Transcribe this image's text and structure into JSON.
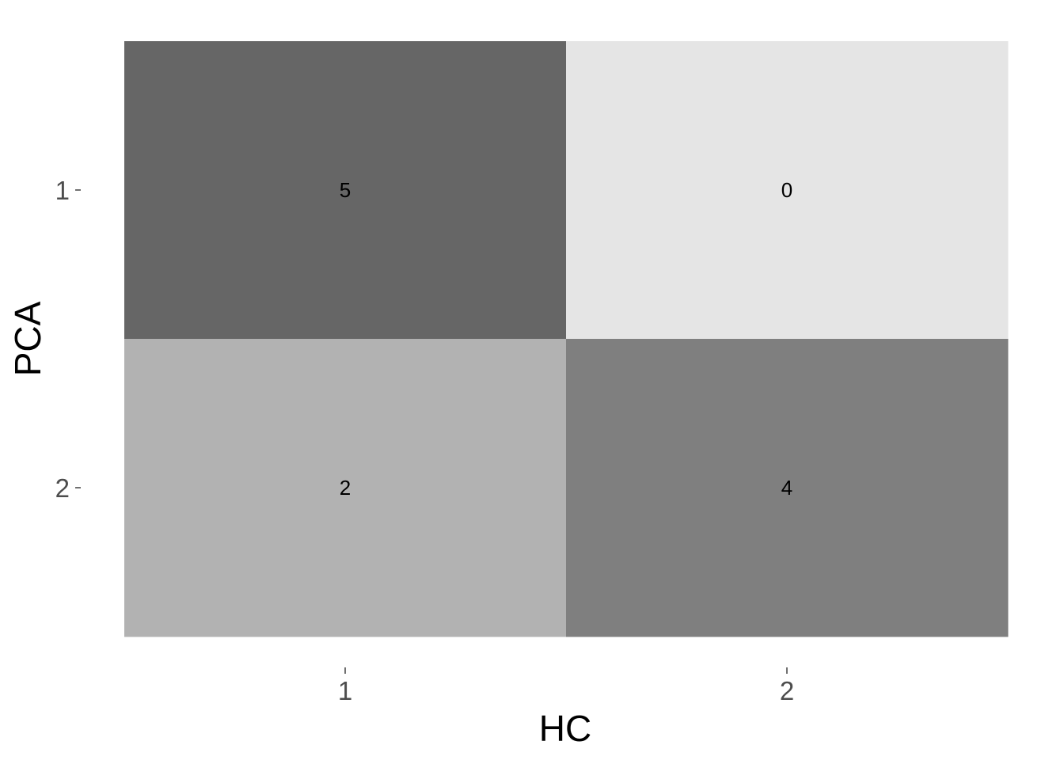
{
  "chart_data": {
    "type": "heatmap",
    "title": "",
    "xlabel": "HC",
    "ylabel": "PCA",
    "x_categories": [
      "1",
      "2"
    ],
    "y_categories": [
      "1",
      "2"
    ],
    "cells": [
      {
        "x": "1",
        "y": "1",
        "value": 5,
        "label": "5"
      },
      {
        "x": "2",
        "y": "1",
        "value": 0,
        "label": "0"
      },
      {
        "x": "1",
        "y": "2",
        "value": 2,
        "label": "2"
      },
      {
        "x": "2",
        "y": "2",
        "value": 4,
        "label": "4"
      }
    ],
    "color_scale": {
      "low": "#e5e5e5",
      "high": "#666666"
    },
    "value_range": [
      0,
      5
    ],
    "legend": "none",
    "grid": false
  }
}
